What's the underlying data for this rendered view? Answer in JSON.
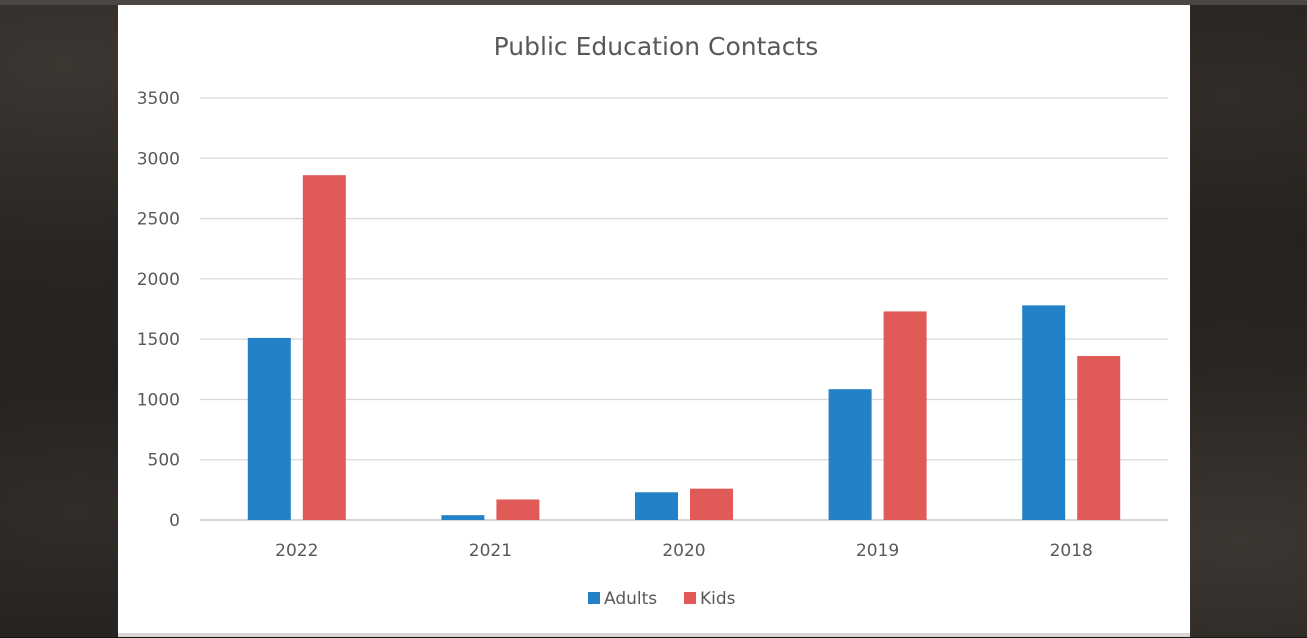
{
  "chart_data": {
    "type": "bar",
    "title": "Public Education Contacts",
    "xlabel": "",
    "ylabel": "",
    "categories": [
      "2022",
      "2021",
      "2020",
      "2019",
      "2018"
    ],
    "series": [
      {
        "name": "Adults",
        "color": "#2381c7",
        "values": [
          1510,
          40,
          230,
          1085,
          1780
        ]
      },
      {
        "name": "Kids",
        "color": "#e05a58",
        "values": [
          2860,
          170,
          260,
          1730,
          1360
        ]
      }
    ],
    "ylim": [
      0,
      3500
    ],
    "yticks": [
      "0",
      "500",
      "1000",
      "1500",
      "2000",
      "2500",
      "3000",
      "3500"
    ],
    "grid": true,
    "legend_position": "bottom-center"
  }
}
